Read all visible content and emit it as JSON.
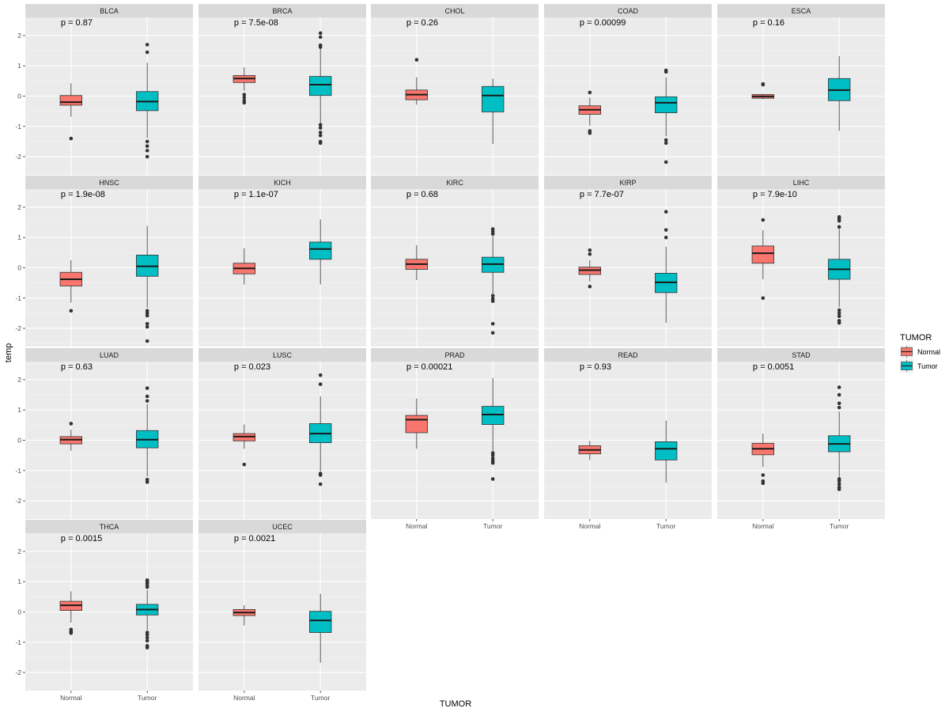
{
  "chart_data": {
    "type": "box",
    "layout": "facet_wrap 5 columns",
    "y_axis_label": "temp",
    "x_axis_label": "TUMOR",
    "x_categories": [
      "Normal",
      "Tumor"
    ],
    "y_ticks": [
      -2,
      -1,
      0,
      1,
      2
    ],
    "ylim": [
      -2.6,
      2.6
    ],
    "legend": {
      "title": "TUMOR",
      "position": "right",
      "entries": [
        {
          "label": "Normal",
          "color": "#F8766D"
        },
        {
          "label": "Tumor",
          "color": "#00BFC4"
        }
      ]
    },
    "panels": [
      {
        "name": "BLCA",
        "p": "p = 0.87",
        "normal": {
          "q1": -0.3,
          "med": -0.2,
          "q3": 0.02,
          "lo": -0.68,
          "hi": 0.42,
          "out": [
            -1.4
          ]
        },
        "tumor": {
          "q1": -0.48,
          "med": -0.18,
          "q3": 0.15,
          "lo": -1.38,
          "hi": 1.1,
          "out": [
            1.7,
            1.45,
            -1.5,
            -1.65,
            -1.8,
            -2.0
          ]
        }
      },
      {
        "name": "BRCA",
        "p": "p = 7.5e-08",
        "normal": {
          "q1": 0.45,
          "med": 0.58,
          "q3": 0.68,
          "lo": 0.18,
          "hi": 0.95,
          "out": [
            0.05,
            -0.05,
            -0.15,
            -0.22
          ]
        },
        "tumor": {
          "q1": 0.02,
          "med": 0.38,
          "q3": 0.65,
          "lo": -0.9,
          "hi": 1.6,
          "out": [
            2.08,
            1.95,
            1.68,
            1.62,
            -0.95,
            -1.05,
            -1.2,
            -1.3,
            -1.5,
            -1.55
          ]
        }
      },
      {
        "name": "CHOL",
        "p": "p = 0.26",
        "normal": {
          "q1": -0.12,
          "med": 0.05,
          "q3": 0.2,
          "lo": -0.28,
          "hi": 0.62,
          "out": [
            1.2
          ]
        },
        "tumor": {
          "q1": -0.52,
          "med": 0.02,
          "q3": 0.32,
          "lo": -1.58,
          "hi": 0.58,
          "out": []
        }
      },
      {
        "name": "COAD",
        "p": "p = 0.00099",
        "normal": {
          "q1": -0.6,
          "med": -0.45,
          "q3": -0.32,
          "lo": -0.98,
          "hi": -0.05,
          "out": [
            0.12,
            -1.15,
            -1.22
          ]
        },
        "tumor": {
          "q1": -0.55,
          "med": -0.22,
          "q3": -0.02,
          "lo": -1.32,
          "hi": 0.62,
          "out": [
            0.85,
            0.8,
            -1.45,
            -1.55,
            -2.18
          ]
        }
      },
      {
        "name": "ESCA",
        "p": "p = 0.16",
        "normal": {
          "q1": -0.07,
          "med": -0.01,
          "q3": 0.05,
          "lo": -0.1,
          "hi": 0.08,
          "out": [
            0.4,
            0.38
          ]
        },
        "tumor": {
          "q1": -0.15,
          "med": 0.2,
          "q3": 0.58,
          "lo": -1.15,
          "hi": 1.32,
          "out": []
        }
      },
      {
        "name": "HNSC",
        "p": "p = 1.9e-08",
        "normal": {
          "q1": -0.6,
          "med": -0.38,
          "q3": -0.15,
          "lo": -1.15,
          "hi": 0.25,
          "out": [
            -1.42
          ]
        },
        "tumor": {
          "q1": -0.28,
          "med": 0.05,
          "q3": 0.42,
          "lo": -1.32,
          "hi": 1.38,
          "out": [
            -1.42,
            -1.5,
            -1.58,
            -1.85,
            -1.95,
            -2.42
          ]
        }
      },
      {
        "name": "KICH",
        "p": "p = 1.1e-07",
        "normal": {
          "q1": -0.2,
          "med": -0.02,
          "q3": 0.15,
          "lo": -0.55,
          "hi": 0.65,
          "out": []
        },
        "tumor": {
          "q1": 0.28,
          "med": 0.62,
          "q3": 0.85,
          "lo": -0.55,
          "hi": 1.6,
          "out": []
        }
      },
      {
        "name": "KIRC",
        "p": "p = 0.68",
        "normal": {
          "q1": -0.05,
          "med": 0.12,
          "q3": 0.28,
          "lo": -0.4,
          "hi": 0.75,
          "out": []
        },
        "tumor": {
          "q1": -0.15,
          "med": 0.12,
          "q3": 0.35,
          "lo": -0.85,
          "hi": 1.05,
          "out": [
            1.28,
            1.2,
            1.12,
            -0.92,
            -1.02,
            -1.1,
            -1.85,
            -2.15
          ]
        }
      },
      {
        "name": "KIRP",
        "p": "p = 7.7e-07",
        "normal": {
          "q1": -0.22,
          "med": -0.08,
          "q3": 0.02,
          "lo": -0.45,
          "hi": 0.25,
          "out": [
            0.58,
            0.45,
            -0.62
          ]
        },
        "tumor": {
          "q1": -0.82,
          "med": -0.48,
          "q3": -0.18,
          "lo": -1.82,
          "hi": 0.7,
          "out": [
            1.85,
            1.25,
            1.0
          ]
        }
      },
      {
        "name": "LIHC",
        "p": "p = 7.9e-10",
        "normal": {
          "q1": 0.15,
          "med": 0.48,
          "q3": 0.72,
          "lo": -0.38,
          "hi": 1.25,
          "out": [
            1.58,
            -1.0
          ]
        },
        "tumor": {
          "q1": -0.38,
          "med": -0.05,
          "q3": 0.28,
          "lo": -1.3,
          "hi": 1.28,
          "out": [
            1.68,
            1.62,
            1.55,
            1.35,
            -1.4,
            -1.5,
            -1.6,
            -1.75,
            -1.82
          ]
        }
      },
      {
        "name": "LUAD",
        "p": "p = 0.63",
        "normal": {
          "q1": -0.12,
          "med": 0.02,
          "q3": 0.12,
          "lo": -0.35,
          "hi": 0.35,
          "out": [
            0.55
          ]
        },
        "tumor": {
          "q1": -0.25,
          "med": 0.02,
          "q3": 0.32,
          "lo": -1.2,
          "hi": 1.2,
          "out": [
            1.72,
            1.45,
            1.3,
            -1.3,
            -1.38
          ]
        }
      },
      {
        "name": "LUSC",
        "p": "p = 0.023",
        "normal": {
          "q1": -0.02,
          "med": 0.12,
          "q3": 0.22,
          "lo": -0.28,
          "hi": 0.52,
          "out": [
            -0.8
          ]
        },
        "tumor": {
          "q1": -0.08,
          "med": 0.22,
          "q3": 0.55,
          "lo": -1.02,
          "hi": 1.45,
          "out": [
            2.15,
            1.85,
            -1.1,
            -1.15,
            -1.45
          ]
        }
      },
      {
        "name": "PRAD",
        "p": "p = 0.00021",
        "normal": {
          "q1": 0.25,
          "med": 0.68,
          "q3": 0.82,
          "lo": -0.28,
          "hi": 1.38,
          "out": []
        },
        "tumor": {
          "q1": 0.52,
          "med": 0.85,
          "q3": 1.12,
          "lo": -0.35,
          "hi": 2.05,
          "out": [
            -0.42,
            -0.5,
            -0.6,
            -0.68,
            -0.75,
            -1.28
          ]
        }
      },
      {
        "name": "READ",
        "p": "p = 0.93",
        "normal": {
          "q1": -0.45,
          "med": -0.32,
          "q3": -0.18,
          "lo": -0.65,
          "hi": -0.02,
          "out": []
        },
        "tumor": {
          "q1": -0.65,
          "med": -0.28,
          "q3": -0.05,
          "lo": -1.4,
          "hi": 0.65,
          "out": []
        }
      },
      {
        "name": "STAD",
        "p": "p = 0.0051",
        "normal": {
          "q1": -0.48,
          "med": -0.28,
          "q3": -0.1,
          "lo": -0.88,
          "hi": 0.22,
          "out": [
            -1.15,
            -1.35,
            -1.42
          ]
        },
        "tumor": {
          "q1": -0.38,
          "med": -0.12,
          "q3": 0.15,
          "lo": -1.22,
          "hi": 0.95,
          "out": [
            1.75,
            1.5,
            1.22,
            1.08,
            -1.28,
            -1.35,
            -1.45,
            -1.55,
            -1.62
          ]
        }
      },
      {
        "name": "THCA",
        "p": "p = 0.0015",
        "normal": {
          "q1": 0.05,
          "med": 0.22,
          "q3": 0.35,
          "lo": -0.35,
          "hi": 0.68,
          "out": [
            -0.58,
            -0.65,
            -0.7
          ]
        },
        "tumor": {
          "q1": -0.1,
          "med": 0.08,
          "q3": 0.25,
          "lo": -0.6,
          "hi": 0.72,
          "out": [
            1.05,
            1.0,
            0.95,
            0.88,
            0.82,
            -0.68,
            -0.75,
            -0.85,
            -0.95,
            -1.12,
            -1.18
          ]
        }
      },
      {
        "name": "UCEC",
        "p": "p = 0.0021",
        "normal": {
          "q1": -0.12,
          "med": -0.02,
          "q3": 0.08,
          "lo": -0.45,
          "hi": 0.22,
          "out": []
        },
        "tumor": {
          "q1": -0.68,
          "med": -0.28,
          "q3": 0.02,
          "lo": -1.68,
          "hi": 0.6,
          "out": []
        }
      }
    ]
  }
}
